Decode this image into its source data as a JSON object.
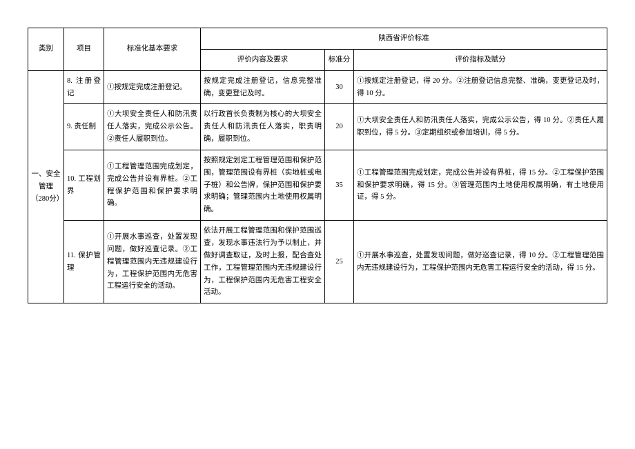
{
  "header": {
    "category": "类别",
    "item": "项目",
    "basic": "标准化基本要求",
    "province_std": "陕西省评价标准",
    "eval_content": "评价内容及要求",
    "std_score": "标准分",
    "eval_index": "评价指标及赋分"
  },
  "category_label": "一、安全管理（280分）",
  "rows": [
    {
      "item": "8. 注册登记",
      "basic": "①按规定完成注册登记。",
      "content": "按规定完成注册登记，信息完整准确，变更登记及时。",
      "score": "30",
      "eval": "①按规定注册登记，得 20 分。②注册登记信息完整、准确，变更登记及时，得 10 分。"
    },
    {
      "item": "9. 责任制",
      "basic": "①大坝安全责任人和防汛责任人落实，完成公示公告。②责任人履职到位。",
      "content": "以行政首长负责制为核心的大坝安全责任人和防汛责任人落实，职责明确，履职到位。",
      "score": "20",
      "eval": "①大坝安全责任人和防汛责任人落实，完成公示公告，得 10 分。②责任人履职到位，得 5 分。③定期组织或参加培训，得 5 分。"
    },
    {
      "item": "10. 工程划界",
      "basic": "①工程管理范围完成划定，完成公告并设有界桩。②工程保护范围和保护要求明确。",
      "content": "按照规定划定工程管理范围和保护范围，管理范围设有界桩（实地桩或电子桩）和公告牌，保护范围和保护要求明确；管理范围内土地使用权属明确。",
      "score": "35",
      "eval": "①工程管理范围完成划定，完成公告并设有界桩，得 15 分。②工程保护范围和保护要求明确，得 15 分。③管理范围内土地使用权属明确，有土地使用证，得 5 分。"
    },
    {
      "item": "11. 保护管理",
      "basic": "①开展水事巡查，处置发现问题，做好巡查记录。②工程管理范围内无违规建设行为，工程保护范围内无危害工程运行安全的活动。",
      "content": "依法开展工程管理范围和保护范围巡查，发现水事违法行为予以制止，并做好调查取证，及时上报，配合查处工作，工程管理范围内无违规建设行为，工程保护范围内无危害工程安全活动。",
      "score": "25",
      "eval": "①开展水事巡查，处置发现问题，做好巡查记录，得 10 分。②工程管理范围内无违规建设行为，工程保护范围内无危害工程运行安全的活动，得 15 分。"
    }
  ]
}
